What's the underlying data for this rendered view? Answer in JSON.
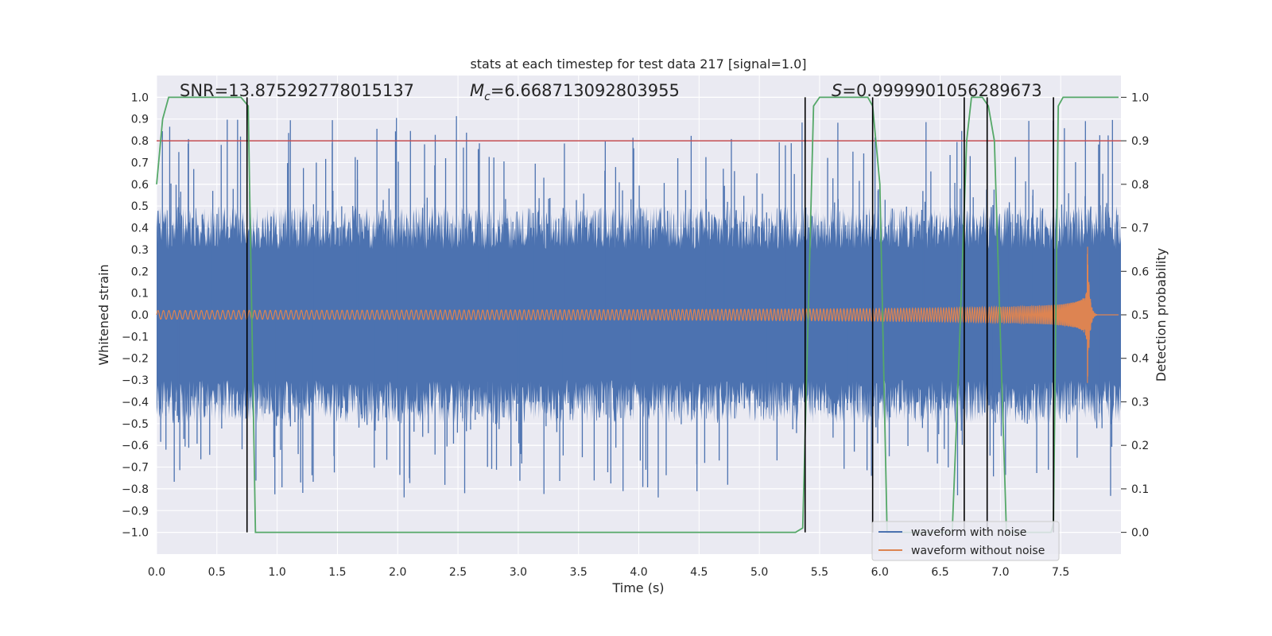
{
  "chart_data": {
    "type": "line",
    "title": "stats at each timestep for test data 217 [signal=1.0]",
    "xlabel": "Time (s)",
    "ylabel": "Whitened strain",
    "y2label": "Detection probability",
    "xlim": [
      0.0,
      8.0
    ],
    "ylim": [
      -1.1,
      1.1
    ],
    "y2lim": [
      -0.05,
      1.05
    ],
    "xticks": [
      "0.0",
      "0.5",
      "1.0",
      "1.5",
      "2.0",
      "2.5",
      "3.0",
      "3.5",
      "4.0",
      "4.5",
      "5.0",
      "5.5",
      "6.0",
      "6.5",
      "7.0",
      "7.5"
    ],
    "yticks": [
      "1.0",
      "0.9",
      "0.8",
      "0.7",
      "0.6",
      "0.5",
      "0.4",
      "0.3",
      "0.2",
      "0.1",
      "0.0",
      "−0.1",
      "−0.2",
      "−0.3",
      "−0.4",
      "−0.5",
      "−0.6",
      "−0.7",
      "−0.8",
      "−0.9",
      "−1.0"
    ],
    "y2ticks": [
      "1.0",
      "0.9",
      "0.8",
      "0.7",
      "0.6",
      "0.5",
      "0.4",
      "0.3",
      "0.2",
      "0.1",
      "0.0"
    ],
    "annotations": {
      "snr": "SNR=13.875292778015137",
      "mc_symbol": "M",
      "mc_sub": "c",
      "mc_value": "=6.668713092803955",
      "s_symbol": "S",
      "s_value": "=0.9999901056289673"
    },
    "threshold": 0.9,
    "threshold_color": "#c44e52",
    "noise_color": "#4c72b0",
    "signal_color": "#dd8452",
    "prob_color": "#55a868",
    "noise_envelope": {
      "core": 0.3,
      "peak_range": [
        -0.84,
        0.92
      ]
    },
    "signal_waveform": {
      "start_amplitude": 0.02,
      "end_amplitude": 0.38,
      "merger_time": 7.72,
      "end_time": 7.8,
      "post_merger_value": 0.0
    },
    "probability_series": {
      "x": [
        0.0,
        0.05,
        0.1,
        0.55,
        0.7,
        0.76,
        0.82,
        5.3,
        5.36,
        5.45,
        5.5,
        5.9,
        5.94,
        6.0,
        6.06,
        6.6,
        6.65,
        6.72,
        6.76,
        6.85,
        6.9,
        6.95,
        7.05,
        7.42,
        7.44,
        7.48,
        7.52,
        7.98
      ],
      "y": [
        0.8,
        0.95,
        1.0,
        1.0,
        1.0,
        0.98,
        0.0,
        0.0,
        0.01,
        0.98,
        1.0,
        1.0,
        0.98,
        0.8,
        0.0,
        0.0,
        0.35,
        0.9,
        1.0,
        1.0,
        0.98,
        0.9,
        0.0,
        0.0,
        0.02,
        0.98,
        1.0,
        1.0
      ]
    },
    "event_markers": [
      0.75,
      5.38,
      5.94,
      6.7,
      6.89,
      7.44
    ],
    "legend": {
      "position": "lower-right",
      "entries": [
        "waveform with noise",
        "waveform without noise"
      ]
    }
  }
}
